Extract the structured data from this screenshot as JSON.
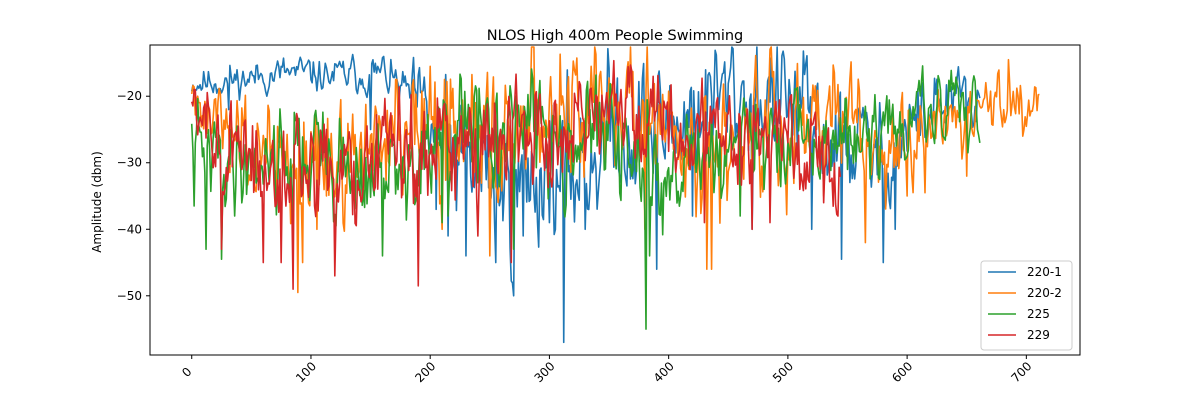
{
  "chart_data": {
    "type": "line",
    "title": "NLOS High 400m People Swimming",
    "xlabel": "",
    "ylabel": "Amplitude (dbm)",
    "xlim": [
      -35,
      745
    ],
    "ylim": [
      -58.9,
      -12.3
    ],
    "xticks": [
      0,
      100,
      200,
      300,
      400,
      500,
      600,
      700
    ],
    "yticks": [
      -50,
      -40,
      -30,
      -20
    ],
    "grid": false,
    "legend_position": "lower-right",
    "series": [
      {
        "name": "220-1",
        "color": "#1f77b4",
        "length": 662,
        "base": [
          [
            0,
            -18
          ],
          [
            40,
            -17.5
          ],
          [
            80,
            -16.5
          ],
          [
            120,
            -17
          ],
          [
            160,
            -16.5
          ],
          [
            185,
            -20
          ],
          [
            200,
            -25
          ],
          [
            225,
            -30
          ],
          [
            250,
            -32
          ],
          [
            270,
            -35
          ],
          [
            290,
            -31
          ],
          [
            310,
            -33
          ],
          [
            330,
            -29
          ],
          [
            360,
            -24
          ],
          [
            390,
            -26
          ],
          [
            420,
            -22
          ],
          [
            450,
            -20
          ],
          [
            480,
            -20
          ],
          [
            500,
            -21
          ],
          [
            520,
            -24
          ],
          [
            540,
            -27
          ],
          [
            560,
            -27
          ],
          [
            580,
            -30
          ],
          [
            600,
            -25
          ],
          [
            620,
            -22
          ],
          [
            640,
            -21
          ],
          [
            662,
            -22
          ]
        ],
        "amp": [
          [
            0,
            2
          ],
          [
            180,
            2.5
          ],
          [
            200,
            8
          ],
          [
            300,
            10
          ],
          [
            400,
            9
          ],
          [
            500,
            8
          ],
          [
            600,
            6
          ],
          [
            662,
            4
          ]
        ],
        "spikes": [
          [
            31,
            -22
          ],
          [
            150,
            -25
          ],
          [
            160,
            -14.2
          ],
          [
            205,
            -37
          ],
          [
            215,
            -41
          ],
          [
            230,
            -44
          ],
          [
            255,
            -45
          ],
          [
            270,
            -50
          ],
          [
            278,
            -41
          ],
          [
            300,
            -39
          ],
          [
            312,
            -57
          ],
          [
            320,
            -33
          ],
          [
            330,
            -40
          ],
          [
            390,
            -46
          ],
          [
            420,
            -38
          ],
          [
            470,
            -40
          ],
          [
            520,
            -40
          ],
          [
            545,
            -44.5
          ],
          [
            580,
            -45
          ],
          [
            590,
            -40
          ],
          [
            650,
            -26
          ]
        ],
        "seed": 11
      },
      {
        "name": "220-2",
        "color": "#ff7f0e",
        "length": 712,
        "base": [
          [
            0,
            -19
          ],
          [
            30,
            -24
          ],
          [
            60,
            -28
          ],
          [
            90,
            -32
          ],
          [
            120,
            -29
          ],
          [
            150,
            -27
          ],
          [
            180,
            -24
          ],
          [
            200,
            -25
          ],
          [
            230,
            -27
          ],
          [
            260,
            -25
          ],
          [
            290,
            -24
          ],
          [
            320,
            -22
          ],
          [
            350,
            -20
          ],
          [
            380,
            -22
          ],
          [
            410,
            -27
          ],
          [
            440,
            -28
          ],
          [
            460,
            -26
          ],
          [
            480,
            -26
          ],
          [
            500,
            -24
          ],
          [
            520,
            -22
          ],
          [
            550,
            -26
          ],
          [
            580,
            -30
          ],
          [
            600,
            -27
          ],
          [
            620,
            -25
          ],
          [
            650,
            -23
          ],
          [
            680,
            -21
          ],
          [
            700,
            -19
          ],
          [
            712,
            -20
          ]
        ],
        "amp": [
          [
            0,
            3
          ],
          [
            40,
            8
          ],
          [
            100,
            9
          ],
          [
            300,
            9
          ],
          [
            450,
            9
          ],
          [
            600,
            7
          ],
          [
            650,
            4
          ],
          [
            712,
            3
          ]
        ],
        "spikes": [
          [
            5,
            -20
          ],
          [
            89,
            -49.5
          ],
          [
            93,
            -45
          ],
          [
            105,
            -40
          ],
          [
            200,
            -15.5
          ],
          [
            210,
            -40
          ],
          [
            250,
            -44
          ],
          [
            335,
            -15.5
          ],
          [
            380,
            -40
          ],
          [
            432,
            -46
          ],
          [
            436,
            -46
          ],
          [
            470,
            -32
          ],
          [
            530,
            -35
          ],
          [
            565,
            -42
          ],
          [
            600,
            -35
          ],
          [
            615,
            -34.5
          ],
          [
            650,
            -32
          ],
          [
            685,
            -14.5
          ],
          [
            697,
            -26
          ]
        ],
        "seed": 27
      },
      {
        "name": "225",
        "color": "#2ca02c",
        "length": 662,
        "base": [
          [
            0,
            -28
          ],
          [
            30,
            -30
          ],
          [
            60,
            -29
          ],
          [
            90,
            -28
          ],
          [
            120,
            -30
          ],
          [
            150,
            -32
          ],
          [
            180,
            -32
          ],
          [
            210,
            -27
          ],
          [
            240,
            -25
          ],
          [
            270,
            -24
          ],
          [
            300,
            -26
          ],
          [
            330,
            -25
          ],
          [
            350,
            -27
          ],
          [
            370,
            -30
          ],
          [
            390,
            -33
          ],
          [
            410,
            -30
          ],
          [
            440,
            -28
          ],
          [
            470,
            -26
          ],
          [
            500,
            -28
          ],
          [
            520,
            -28
          ],
          [
            550,
            -26
          ],
          [
            580,
            -26
          ],
          [
            610,
            -23
          ],
          [
            640,
            -22
          ],
          [
            662,
            -22
          ]
        ],
        "amp": [
          [
            0,
            6
          ],
          [
            100,
            7
          ],
          [
            300,
            7
          ],
          [
            400,
            7
          ],
          [
            500,
            6
          ],
          [
            662,
            4
          ]
        ],
        "spikes": [
          [
            2,
            -36.5
          ],
          [
            12,
            -43
          ],
          [
            25,
            -44.5
          ],
          [
            85,
            -41
          ],
          [
            160,
            -44
          ],
          [
            210,
            -39
          ],
          [
            215,
            -38
          ],
          [
            240,
            -33
          ],
          [
            270,
            -43
          ],
          [
            381,
            -55
          ],
          [
            384,
            -44
          ],
          [
            410,
            -35
          ],
          [
            460,
            -38
          ],
          [
            480,
            -34
          ],
          [
            550,
            -31
          ],
          [
            595,
            -26
          ],
          [
            638,
            -19
          ]
        ],
        "seed": 41
      },
      {
        "name": "229",
        "color": "#d62728",
        "length": 545,
        "base": [
          [
            0,
            -21
          ],
          [
            30,
            -27
          ],
          [
            60,
            -33
          ],
          [
            90,
            -33
          ],
          [
            120,
            -32
          ],
          [
            150,
            -29
          ],
          [
            180,
            -26
          ],
          [
            210,
            -27
          ],
          [
            240,
            -26
          ],
          [
            270,
            -24
          ],
          [
            300,
            -24
          ],
          [
            330,
            -23
          ],
          [
            360,
            -21
          ],
          [
            390,
            -22
          ],
          [
            410,
            -25
          ],
          [
            440,
            -27
          ],
          [
            470,
            -27
          ],
          [
            500,
            -27
          ],
          [
            520,
            -27
          ],
          [
            545,
            -33
          ]
        ],
        "amp": [
          [
            0,
            3
          ],
          [
            30,
            7
          ],
          [
            100,
            8
          ],
          [
            300,
            8
          ],
          [
            400,
            7
          ],
          [
            545,
            6
          ]
        ],
        "spikes": [
          [
            3,
            -19
          ],
          [
            25,
            -43
          ],
          [
            60,
            -45
          ],
          [
            75,
            -45
          ],
          [
            85,
            -49
          ],
          [
            120,
            -47
          ],
          [
            190,
            -48.5
          ],
          [
            240,
            -41
          ],
          [
            268,
            -45
          ],
          [
            360,
            -19
          ],
          [
            387,
            -17
          ],
          [
            430,
            -39
          ],
          [
            470,
            -40
          ],
          [
            485,
            -39
          ],
          [
            510,
            -34
          ],
          [
            530,
            -36
          ]
        ],
        "seed": 57
      }
    ]
  }
}
